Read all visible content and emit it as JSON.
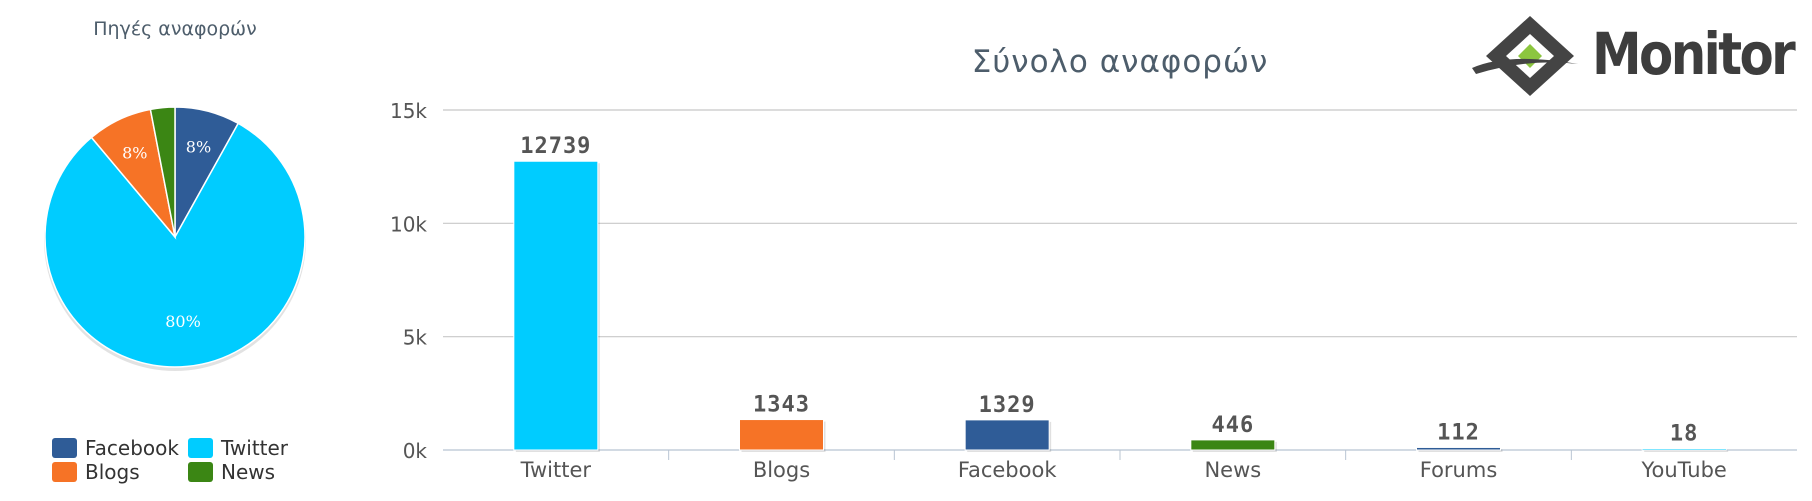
{
  "pie_title": "Πηγές αναφορών",
  "logo_text": "Monitor",
  "colors": {
    "facebook": "#2f5c97",
    "twitter": "#00ccff",
    "blogs": "#f67326",
    "news": "#3b8614",
    "forums": "#2f5c97",
    "youtube": "#00ccff"
  },
  "legend": [
    {
      "label": "Facebook",
      "color": "#2f5c97"
    },
    {
      "label": "Twitter",
      "color": "#00ccff"
    },
    {
      "label": "Blogs",
      "color": "#f67326"
    },
    {
      "label": "News",
      "color": "#3b8614"
    }
  ],
  "chart_data": [
    {
      "type": "pie",
      "title": "Πηγές αναφορών",
      "slices": [
        {
          "name": "Facebook",
          "value": 8,
          "label": "8%",
          "color": "#2f5c97"
        },
        {
          "name": "Twitter",
          "value": 80,
          "label": "80%",
          "color": "#00ccff"
        },
        {
          "name": "Blogs",
          "value": 8,
          "label": "8%",
          "color": "#f67326"
        },
        {
          "name": "News",
          "value": 3,
          "label": "",
          "color": "#3b8614"
        }
      ],
      "legend_position": "bottom"
    },
    {
      "type": "bar",
      "title": "Σύνολο αναφορών",
      "categories": [
        "Twitter",
        "Blogs",
        "Facebook",
        "News",
        "Forums",
        "YouTube"
      ],
      "values": [
        12739,
        1343,
        1329,
        446,
        112,
        18
      ],
      "value_labels": [
        "12739",
        "1343",
        "1329",
        "446",
        "112",
        "18"
      ],
      "bar_colors": [
        "#00ccff",
        "#f67326",
        "#2f5c97",
        "#3b8614",
        "#2f5c97",
        "#00ccff"
      ],
      "ylim": [
        0,
        15000
      ],
      "yticks": [
        0,
        5000,
        10000,
        15000
      ],
      "ytick_labels": [
        "0k",
        "5k",
        "10k",
        "15k"
      ],
      "xlabel": "",
      "ylabel": "",
      "grid": true
    }
  ]
}
